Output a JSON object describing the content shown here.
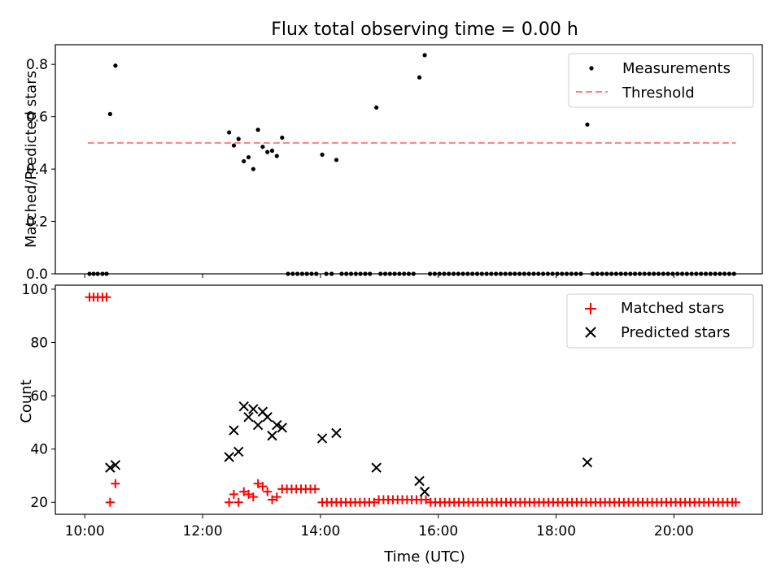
{
  "figure": {
    "title": "Flux total observing time = 0.00 h"
  },
  "colors": {
    "measurement": "#000000",
    "threshold": "#ff7f7f",
    "matched": "#ff0000",
    "predicted": "#000000"
  },
  "chart_data": [
    {
      "type": "scatter",
      "title": "Flux total observing time = 0.00 h",
      "xlabel": "",
      "ylabel": "Matched/Predicted stars",
      "x_unit": "hours (UTC)",
      "xlim": [
        9.5,
        21.5
      ],
      "ylim": [
        0.0,
        0.875
      ],
      "yticks": [
        0.0,
        0.2,
        0.4,
        0.6,
        0.8
      ],
      "ytick_labels": [
        "0.0",
        "0.2",
        "0.4",
        "0.6",
        "0.8"
      ],
      "xticks": [
        10,
        12,
        14,
        16,
        18,
        20
      ],
      "xtick_labels": [],
      "legend": {
        "placement": "top-right",
        "entries": [
          "Measurements",
          "Threshold"
        ]
      },
      "series": [
        {
          "name": "Measurements",
          "marker": "dot",
          "points": [
            [
              10.08,
              0.0
            ],
            [
              10.15,
              0.0
            ],
            [
              10.22,
              0.0
            ],
            [
              10.3,
              0.0
            ],
            [
              10.37,
              0.0
            ],
            [
              10.43,
              0.61
            ],
            [
              10.52,
              0.795
            ],
            [
              12.45,
              0.54
            ],
            [
              12.53,
              0.49
            ],
            [
              12.61,
              0.515
            ],
            [
              12.7,
              0.43
            ],
            [
              12.78,
              0.445
            ],
            [
              12.86,
              0.4
            ],
            [
              12.94,
              0.55
            ],
            [
              13.02,
              0.485
            ],
            [
              13.1,
              0.465
            ],
            [
              13.18,
              0.47
            ],
            [
              13.26,
              0.45
            ],
            [
              13.35,
              0.52
            ],
            [
              13.45,
              0.0
            ],
            [
              13.53,
              0.0
            ],
            [
              13.61,
              0.0
            ],
            [
              13.69,
              0.0
            ],
            [
              13.77,
              0.0
            ],
            [
              13.85,
              0.0
            ],
            [
              13.93,
              0.0
            ],
            [
              14.03,
              0.455
            ],
            [
              14.1,
              0.0
            ],
            [
              14.19,
              0.0
            ],
            [
              14.27,
              0.435
            ],
            [
              14.36,
              0.0
            ],
            [
              14.44,
              0.0
            ],
            [
              14.52,
              0.0
            ],
            [
              14.6,
              0.0
            ],
            [
              14.68,
              0.0
            ],
            [
              14.76,
              0.0
            ],
            [
              14.84,
              0.0
            ],
            [
              14.95,
              0.635
            ],
            [
              15.02,
              0.0
            ],
            [
              15.1,
              0.0
            ],
            [
              15.18,
              0.0
            ],
            [
              15.26,
              0.0
            ],
            [
              15.34,
              0.0
            ],
            [
              15.42,
              0.0
            ],
            [
              15.5,
              0.0
            ],
            [
              15.58,
              0.0
            ],
            [
              15.68,
              0.75
            ],
            [
              15.77,
              0.835
            ],
            [
              15.86,
              0.0
            ],
            [
              15.94,
              0.0
            ],
            [
              16.02,
              0.0
            ],
            [
              16.1,
              0.0
            ],
            [
              16.18,
              0.0
            ],
            [
              16.26,
              0.0
            ],
            [
              16.34,
              0.0
            ],
            [
              16.42,
              0.0
            ],
            [
              16.5,
              0.0
            ],
            [
              16.58,
              0.0
            ],
            [
              16.66,
              0.0
            ],
            [
              16.74,
              0.0
            ],
            [
              16.82,
              0.0
            ],
            [
              16.9,
              0.0
            ],
            [
              16.98,
              0.0
            ],
            [
              17.06,
              0.0
            ],
            [
              17.14,
              0.0
            ],
            [
              17.22,
              0.0
            ],
            [
              17.3,
              0.0
            ],
            [
              17.38,
              0.0
            ],
            [
              17.46,
              0.0
            ],
            [
              17.54,
              0.0
            ],
            [
              17.62,
              0.0
            ],
            [
              17.7,
              0.0
            ],
            [
              17.78,
              0.0
            ],
            [
              17.86,
              0.0
            ],
            [
              17.94,
              0.0
            ],
            [
              18.02,
              0.0
            ],
            [
              18.1,
              0.0
            ],
            [
              18.18,
              0.0
            ],
            [
              18.26,
              0.0
            ],
            [
              18.34,
              0.0
            ],
            [
              18.42,
              0.0
            ],
            [
              18.53,
              0.57
            ],
            [
              18.62,
              0.0
            ],
            [
              18.7,
              0.0
            ],
            [
              18.78,
              0.0
            ],
            [
              18.86,
              0.0
            ],
            [
              18.94,
              0.0
            ],
            [
              19.02,
              0.0
            ],
            [
              19.1,
              0.0
            ],
            [
              19.18,
              0.0
            ],
            [
              19.26,
              0.0
            ],
            [
              19.34,
              0.0
            ],
            [
              19.42,
              0.0
            ],
            [
              19.5,
              0.0
            ],
            [
              19.58,
              0.0
            ],
            [
              19.66,
              0.0
            ],
            [
              19.74,
              0.0
            ],
            [
              19.82,
              0.0
            ],
            [
              19.9,
              0.0
            ],
            [
              19.98,
              0.0
            ],
            [
              20.06,
              0.0
            ],
            [
              20.14,
              0.0
            ],
            [
              20.22,
              0.0
            ],
            [
              20.3,
              0.0
            ],
            [
              20.38,
              0.0
            ],
            [
              20.46,
              0.0
            ],
            [
              20.54,
              0.0
            ],
            [
              20.62,
              0.0
            ],
            [
              20.7,
              0.0
            ],
            [
              20.78,
              0.0
            ],
            [
              20.86,
              0.0
            ],
            [
              20.94,
              0.0
            ],
            [
              21.02,
              0.0
            ]
          ]
        },
        {
          "name": "Threshold",
          "style": "dashed-line",
          "points": [
            [
              10.05,
              0.5
            ],
            [
              21.05,
              0.5
            ]
          ]
        }
      ]
    },
    {
      "type": "scatter",
      "title": "",
      "xlabel": "Time (UTC)",
      "ylabel": "Count",
      "x_unit": "hours (UTC)",
      "xlim": [
        9.5,
        21.5
      ],
      "ylim": [
        15.5,
        101.5
      ],
      "yticks": [
        20,
        40,
        60,
        80,
        100
      ],
      "ytick_labels": [
        "20",
        "40",
        "60",
        "80",
        "100"
      ],
      "xticks": [
        10,
        12,
        14,
        16,
        18,
        20
      ],
      "xtick_labels": [
        "10:00",
        "12:00",
        "14:00",
        "16:00",
        "18:00",
        "20:00"
      ],
      "legend": {
        "placement": "top-right",
        "entries": [
          "Matched stars",
          "Predicted stars"
        ]
      },
      "series": [
        {
          "name": "Matched stars",
          "marker": "plus",
          "points": [
            [
              10.08,
              97
            ],
            [
              10.15,
              97
            ],
            [
              10.22,
              97
            ],
            [
              10.3,
              97
            ],
            [
              10.37,
              97
            ],
            [
              10.43,
              20
            ],
            [
              10.52,
              27
            ],
            [
              12.45,
              20
            ],
            [
              12.53,
              23
            ],
            [
              12.61,
              20
            ],
            [
              12.7,
              24
            ],
            [
              12.78,
              23
            ],
            [
              12.86,
              22
            ],
            [
              12.94,
              27
            ],
            [
              13.02,
              26
            ],
            [
              13.1,
              24
            ],
            [
              13.18,
              21
            ],
            [
              13.26,
              22
            ],
            [
              13.35,
              25
            ],
            [
              13.43,
              25
            ],
            [
              13.51,
              25
            ],
            [
              13.59,
              25
            ],
            [
              13.67,
              25
            ],
            [
              13.75,
              25
            ],
            [
              13.83,
              25
            ],
            [
              13.91,
              25
            ],
            [
              14.03,
              20
            ],
            [
              14.11,
              20
            ],
            [
              14.19,
              20
            ],
            [
              14.27,
              20
            ],
            [
              14.35,
              20
            ],
            [
              14.43,
              20
            ],
            [
              14.51,
              20
            ],
            [
              14.59,
              20
            ],
            [
              14.67,
              20
            ],
            [
              14.75,
              20
            ],
            [
              14.83,
              20
            ],
            [
              14.91,
              20
            ],
            [
              14.99,
              21
            ],
            [
              15.07,
              21
            ],
            [
              15.15,
              21
            ],
            [
              15.23,
              21
            ],
            [
              15.31,
              21
            ],
            [
              15.39,
              21
            ],
            [
              15.47,
              21
            ],
            [
              15.55,
              21
            ],
            [
              15.63,
              21
            ],
            [
              15.71,
              21
            ],
            [
              15.79,
              21
            ],
            [
              15.87,
              20
            ],
            [
              15.95,
              20
            ],
            [
              16.03,
              20
            ],
            [
              16.11,
              20
            ],
            [
              16.19,
              20
            ],
            [
              16.27,
              20
            ],
            [
              16.35,
              20
            ],
            [
              16.43,
              20
            ],
            [
              16.51,
              20
            ],
            [
              16.59,
              20
            ],
            [
              16.67,
              20
            ],
            [
              16.75,
              20
            ],
            [
              16.83,
              20
            ],
            [
              16.91,
              20
            ],
            [
              16.99,
              20
            ],
            [
              17.07,
              20
            ],
            [
              17.15,
              20
            ],
            [
              17.23,
              20
            ],
            [
              17.31,
              20
            ],
            [
              17.39,
              20
            ],
            [
              17.47,
              20
            ],
            [
              17.55,
              20
            ],
            [
              17.63,
              20
            ],
            [
              17.71,
              20
            ],
            [
              17.79,
              20
            ],
            [
              17.87,
              20
            ],
            [
              17.95,
              20
            ],
            [
              18.03,
              20
            ],
            [
              18.11,
              20
            ],
            [
              18.19,
              20
            ],
            [
              18.27,
              20
            ],
            [
              18.35,
              20
            ],
            [
              18.43,
              20
            ],
            [
              18.51,
              20
            ],
            [
              18.59,
              20
            ],
            [
              18.67,
              20
            ],
            [
              18.75,
              20
            ],
            [
              18.83,
              20
            ],
            [
              18.91,
              20
            ],
            [
              18.99,
              20
            ],
            [
              19.07,
              20
            ],
            [
              19.15,
              20
            ],
            [
              19.23,
              20
            ],
            [
              19.31,
              20
            ],
            [
              19.39,
              20
            ],
            [
              19.47,
              20
            ],
            [
              19.55,
              20
            ],
            [
              19.63,
              20
            ],
            [
              19.71,
              20
            ],
            [
              19.79,
              20
            ],
            [
              19.87,
              20
            ],
            [
              19.95,
              20
            ],
            [
              20.03,
              20
            ],
            [
              20.11,
              20
            ],
            [
              20.19,
              20
            ],
            [
              20.27,
              20
            ],
            [
              20.35,
              20
            ],
            [
              20.43,
              20
            ],
            [
              20.51,
              20
            ],
            [
              20.59,
              20
            ],
            [
              20.67,
              20
            ],
            [
              20.75,
              20
            ],
            [
              20.83,
              20
            ],
            [
              20.91,
              20
            ],
            [
              20.99,
              20
            ],
            [
              21.05,
              20
            ]
          ]
        },
        {
          "name": "Predicted stars",
          "marker": "x",
          "points": [
            [
              10.43,
              33
            ],
            [
              10.52,
              34
            ],
            [
              12.45,
              37
            ],
            [
              12.53,
              47
            ],
            [
              12.61,
              39
            ],
            [
              12.7,
              56
            ],
            [
              12.78,
              52
            ],
            [
              12.86,
              55
            ],
            [
              12.94,
              49
            ],
            [
              13.02,
              54
            ],
            [
              13.1,
              52
            ],
            [
              13.18,
              45
            ],
            [
              13.26,
              49
            ],
            [
              13.35,
              48
            ],
            [
              14.03,
              44
            ],
            [
              14.27,
              46
            ],
            [
              14.95,
              33
            ],
            [
              15.68,
              28
            ],
            [
              15.77,
              24
            ],
            [
              18.53,
              35
            ]
          ]
        }
      ]
    }
  ]
}
